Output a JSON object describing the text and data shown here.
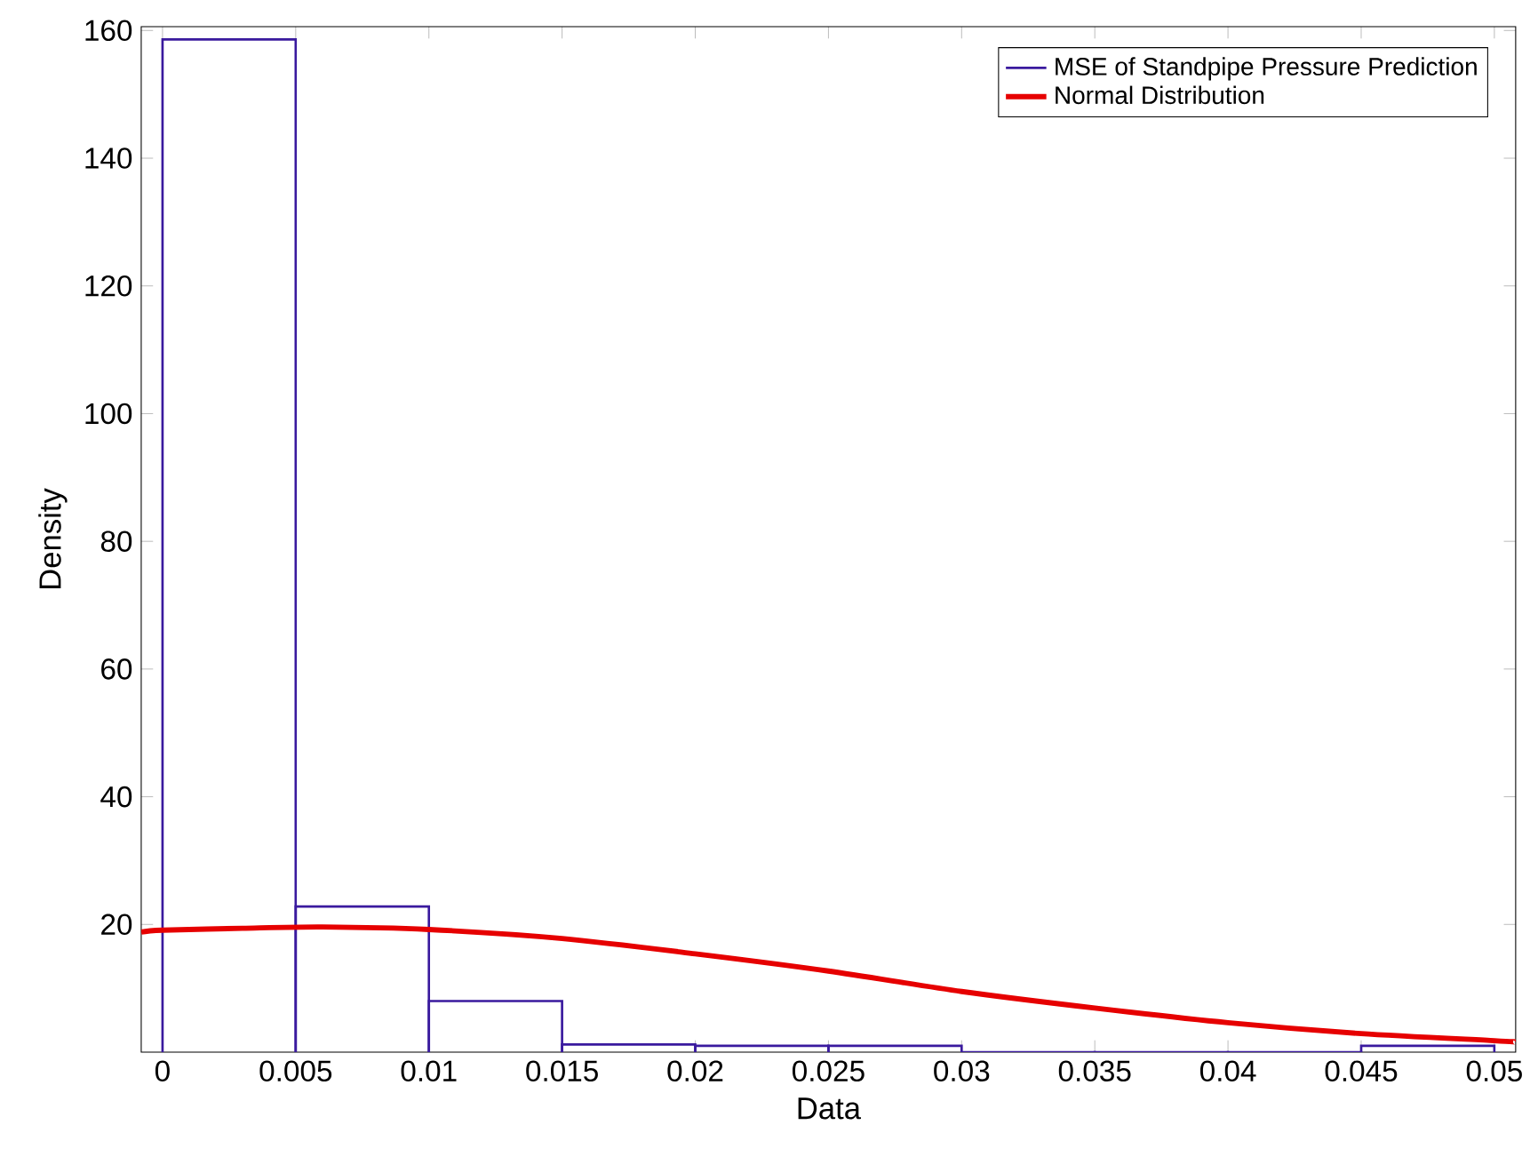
{
  "chart_data": {
    "type": "histogram",
    "xlabel": "Data",
    "ylabel": "Density",
    "series": [
      {
        "name": "MSE of Standpipe Pressure Prediction",
        "color": "#3a1a9e",
        "bins": [
          0,
          0.005,
          0.01,
          0.015,
          0.02,
          0.025,
          0.03,
          0.035,
          0.04,
          0.045,
          0.05
        ],
        "values": [
          158.6,
          22.8,
          8.0,
          1.2,
          1.0,
          1.0,
          0,
          0,
          0,
          1.0
        ]
      },
      {
        "type": "line",
        "name": "Normal Distribution",
        "color": "#e60000",
        "x": [
          -0.0008,
          0,
          0.003,
          0.006,
          0.01,
          0.015,
          0.02,
          0.025,
          0.03,
          0.035,
          0.04,
          0.045,
          0.05,
          0.0508
        ],
        "values": [
          18.8,
          19.1,
          19.4,
          19.6,
          19.2,
          17.8,
          15.4,
          12.7,
          9.5,
          6.9,
          4.6,
          2.9,
          1.8,
          1.6
        ]
      }
    ],
    "xlim": [
      -0.0008,
      0.0508
    ],
    "ylim": [
      0,
      160.6
    ],
    "xticks": [
      0,
      0.005,
      0.01,
      0.015,
      0.02,
      0.025,
      0.03,
      0.035,
      0.04,
      0.045,
      0.05
    ],
    "yticks": [
      20,
      40,
      60,
      80,
      100,
      120,
      140,
      160
    ],
    "legend": "top right"
  }
}
